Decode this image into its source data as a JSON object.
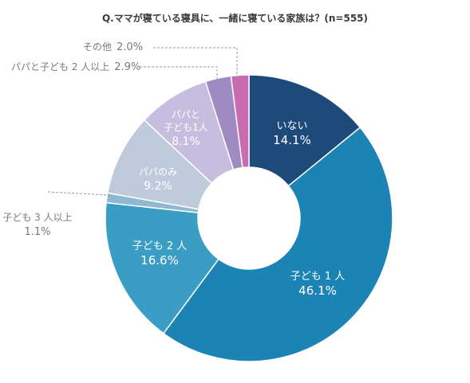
{
  "chart_data": {
    "type": "pie",
    "title": "Q.ママが寝ている寝具に、一緒に寝ている家族は？(n=555)",
    "unit": "%",
    "slices": [
      {
        "id": "inai",
        "label_lines": [
          "いない"
        ],
        "value": 14.1,
        "value_text": "14.1%",
        "color": "#1d4a78",
        "label_pos": "inside"
      },
      {
        "id": "kodomo1",
        "label_lines": [
          "子ども 1 人"
        ],
        "value": 46.1,
        "value_text": "46.1%",
        "color": "#1c84b4",
        "label_pos": "inside"
      },
      {
        "id": "kodomo2",
        "label_lines": [
          "子ども 2 人"
        ],
        "value": 16.6,
        "value_text": "16.6%",
        "color": "#3a9ec4",
        "label_pos": "inside"
      },
      {
        "id": "kodomo3",
        "label_lines": [
          "子ども 3 人以上"
        ],
        "value": 1.1,
        "value_text": "1.1%",
        "color": "#8fb8d1",
        "label_pos": "outside"
      },
      {
        "id": "papanomi",
        "label_lines": [
          "パパのみ"
        ],
        "value": 9.2,
        "value_text": "9.2%",
        "color": "#bfcadb",
        "label_pos": "inside"
      },
      {
        "id": "papa1",
        "label_lines": [
          "パパと",
          "子ども1人"
        ],
        "value": 8.1,
        "value_text": "8.1%",
        "color": "#c7bddf",
        "label_pos": "inside"
      },
      {
        "id": "papa2",
        "label_lines": [
          "パパと子ども 2 人以上"
        ],
        "value": 2.9,
        "value_text": "2.9%",
        "color": "#a08ac2",
        "label_pos": "outside"
      },
      {
        "id": "sonota",
        "label_lines": [
          "その他"
        ],
        "value": 2.0,
        "value_text": "2.0%",
        "color": "#c96bb1",
        "label_pos": "outside"
      }
    ]
  }
}
